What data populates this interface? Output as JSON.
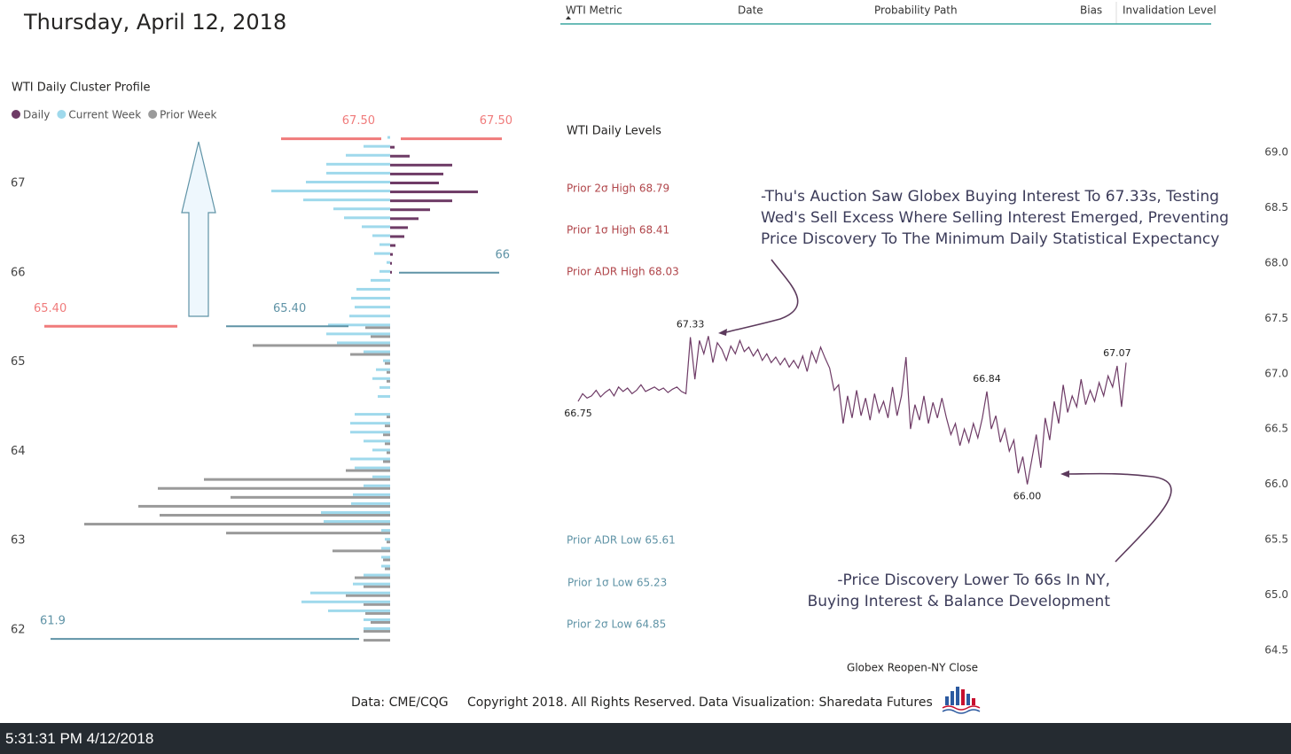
{
  "header": {
    "date": "Thursday, April 12, 2018"
  },
  "table": {
    "columns": [
      "WTI Metric",
      "Date",
      "Probability Path",
      "Bias",
      "Invalidation Level"
    ]
  },
  "chart_data": [
    {
      "type": "bar",
      "title": "WTI Daily Cluster Profile",
      "y": [
        67.5,
        67.4,
        67.3,
        67.2,
        67.1,
        67.0,
        66.9,
        66.8,
        66.7,
        66.6,
        66.5,
        66.4,
        66.3,
        66.2,
        66.1,
        66.0,
        65.9,
        65.8,
        65.7,
        65.6,
        65.5,
        65.4,
        65.3,
        65.2,
        65.1,
        65.0,
        64.9,
        64.8,
        64.7,
        64.6,
        64.5,
        64.4,
        64.3,
        64.2,
        64.1,
        64.0,
        63.9,
        63.8,
        63.7,
        63.6,
        63.5,
        63.4,
        63.3,
        63.2,
        63.1,
        63.0,
        62.9,
        62.8,
        62.7,
        62.6,
        62.5,
        62.4,
        62.3,
        62.2,
        62.1,
        62.0,
        61.9
      ],
      "series": [
        {
          "name": "Daily",
          "color": "#6e3b66",
          "side": "right",
          "values": [
            0,
            5,
            22,
            70,
            60,
            55,
            99,
            70,
            45,
            32,
            20,
            16,
            6,
            3,
            2,
            2,
            0,
            0,
            0,
            0,
            0,
            0,
            0,
            0,
            0,
            0,
            0,
            0,
            0,
            0,
            0,
            0,
            0,
            0,
            0,
            0,
            0,
            0,
            0,
            0,
            0,
            0,
            0,
            0,
            0,
            0,
            0,
            0,
            0,
            0,
            0,
            0,
            0,
            0,
            0,
            0,
            0
          ]
        },
        {
          "name": "Current Week",
          "color": "#9fd9ec",
          "side": "left",
          "values": [
            3,
            30,
            50,
            72,
            72,
            95,
            134,
            98,
            64,
            52,
            32,
            20,
            12,
            18,
            4,
            12,
            22,
            38,
            44,
            40,
            46,
            70,
            72,
            60,
            30,
            8,
            16,
            20,
            12,
            14,
            0,
            40,
            45,
            45,
            30,
            20,
            45,
            40,
            20,
            30,
            42,
            44,
            78,
            75,
            10,
            6,
            10,
            10,
            10,
            30,
            42,
            90,
            100,
            70,
            30,
            30,
            0
          ]
        },
        {
          "name": "Prior Week",
          "color": "#9a9a9a",
          "side": "left",
          "values": [
            0,
            0,
            0,
            0,
            0,
            0,
            0,
            0,
            0,
            0,
            0,
            0,
            0,
            0,
            0,
            0,
            0,
            0,
            0,
            0,
            0,
            28,
            22,
            155,
            45,
            6,
            4,
            4,
            0,
            0,
            0,
            4,
            6,
            8,
            6,
            4,
            8,
            50,
            210,
            262,
            180,
            284,
            260,
            345,
            185,
            4,
            65,
            8,
            6,
            40,
            30,
            50,
            30,
            28,
            22,
            30,
            30
          ]
        }
      ],
      "xlim": [
        0,
        350
      ],
      "ylim": [
        61.8,
        67.6
      ],
      "yticks": [
        62,
        63,
        64,
        65,
        66,
        67
      ],
      "reference_lines": [
        {
          "value": 67.5,
          "label": "67.50",
          "color": "#f07b7b"
        },
        {
          "value": 67.5,
          "label": "67.50",
          "color": "#f07b7b"
        },
        {
          "value": 65.4,
          "label": "65.40",
          "color": "#f07b7b"
        },
        {
          "value": 65.4,
          "label": "65.40",
          "color": "#5f93a6"
        },
        {
          "value": 66,
          "label": "66",
          "color": "#5f93a6"
        },
        {
          "value": 61.9,
          "label": "61.9",
          "color": "#5f93a6"
        }
      ]
    },
    {
      "type": "line",
      "title": "WTI Daily Levels",
      "x_label": "Globex Reopen-NY Close",
      "color": "#6e3b66",
      "values": [
        66.75,
        66.82,
        66.78,
        66.8,
        66.85,
        66.79,
        66.83,
        66.86,
        66.8,
        66.88,
        66.84,
        66.87,
        66.82,
        66.85,
        66.9,
        66.84,
        66.86,
        66.88,
        66.85,
        66.87,
        66.83,
        66.86,
        66.88,
        66.84,
        66.82,
        67.33,
        66.95,
        67.3,
        67.18,
        67.34,
        67.1,
        67.28,
        67.22,
        67.12,
        67.25,
        67.18,
        67.3,
        67.2,
        67.24,
        67.16,
        67.22,
        67.12,
        67.18,
        67.1,
        67.15,
        67.08,
        67.14,
        67.06,
        67.12,
        67.05,
        67.16,
        67.02,
        67.2,
        67.1,
        67.24,
        67.14,
        67.05,
        66.85,
        66.9,
        66.55,
        66.8,
        66.6,
        66.85,
        66.62,
        66.78,
        66.58,
        66.82,
        66.65,
        66.75,
        66.6,
        66.88,
        66.62,
        66.8,
        67.15,
        66.5,
        66.72,
        66.58,
        66.8,
        66.55,
        66.74,
        66.6,
        66.78,
        66.6,
        66.45,
        66.55,
        66.35,
        66.5,
        66.38,
        66.55,
        66.42,
        66.6,
        66.84,
        66.5,
        66.62,
        66.38,
        66.5,
        66.3,
        66.4,
        66.1,
        66.25,
        66.0,
        66.22,
        66.45,
        66.15,
        66.6,
        66.4,
        66.75,
        66.55,
        66.9,
        66.65,
        66.8,
        66.7,
        66.95,
        66.72,
        66.85,
        66.75,
        66.92,
        66.8,
        66.98,
        66.88,
        67.07,
        66.7,
        67.1
      ],
      "value_labels": [
        "66.75",
        null,
        null,
        null,
        null,
        null,
        null,
        null,
        null,
        null,
        null,
        null,
        null,
        null,
        null,
        null,
        null,
        null,
        null,
        null,
        null,
        null,
        null,
        null,
        null,
        "67.33",
        null,
        null,
        null,
        null,
        null,
        null,
        null,
        null,
        null,
        null,
        null,
        null,
        null,
        null,
        null,
        null,
        null,
        null,
        null,
        null,
        null,
        null,
        null,
        null,
        null,
        null,
        null,
        null,
        null,
        null,
        null,
        null,
        null,
        null,
        null,
        null,
        null,
        null,
        null,
        null,
        null,
        null,
        null,
        null,
        null,
        null,
        null,
        null,
        null,
        null,
        null,
        null,
        null,
        null,
        null,
        null,
        null,
        null,
        null,
        null,
        null,
        null,
        null,
        null,
        null,
        "66.84",
        null,
        null,
        null,
        null,
        null,
        null,
        null,
        null,
        "66.00",
        null,
        null,
        null,
        null,
        null,
        null,
        null,
        null,
        null,
        null,
        null,
        null,
        null,
        null,
        null,
        null,
        null,
        null,
        null,
        "67.07",
        null,
        null
      ],
      "ylim": [
        64.5,
        69.0
      ],
      "yticks": [
        {
          "value": 64.5,
          "label": "64.5"
        },
        {
          "value": 65,
          "label": "65.0"
        },
        65.5,
        {
          "value": 66,
          "label": "66.0"
        },
        66.5,
        {
          "value": 67,
          "label": "67.0"
        },
        67.5,
        {
          "value": 68,
          "label": "68.0"
        },
        68.5,
        {
          "value": 69,
          "label": "69.0"
        }
      ],
      "grid": false,
      "levels": [
        {
          "label": "Prior 2σ High 68.79",
          "color": "#b0454a"
        },
        {
          "label": "Prior 1σ High 68.41",
          "color": "#b0454a"
        },
        {
          "label": "Prior ADR High 68.03",
          "color": "#b0454a"
        },
        {
          "label": "Prior ADR Low 65.61",
          "color": "#5f93a6"
        },
        {
          "label": "Prior 1σ Low 65.23",
          "color": "#5f93a6"
        },
        {
          "label": "Prior 2σ Low 64.85",
          "color": "#5f93a6"
        }
      ],
      "annotations": [
        [
          "-Thu's Auction Saw Globex Buying Interest To 67.33s, Testing",
          "Wed's Sell Excess Where Selling Interest Emerged, Preventing",
          "Price Discovery To The Minimum Daily Statistical Expectancy"
        ],
        [
          "-Price Discovery Lower To 66s In NY,",
          "Buying Interest & Balance Development"
        ]
      ]
    }
  ],
  "footer": [
    "Data: CME/CQG",
    "Copyright 2018. All Rights Reserved.",
    "Data Visualization: Sharedata Futures"
  ],
  "status": "5:31:31 PM 4/12/2018"
}
